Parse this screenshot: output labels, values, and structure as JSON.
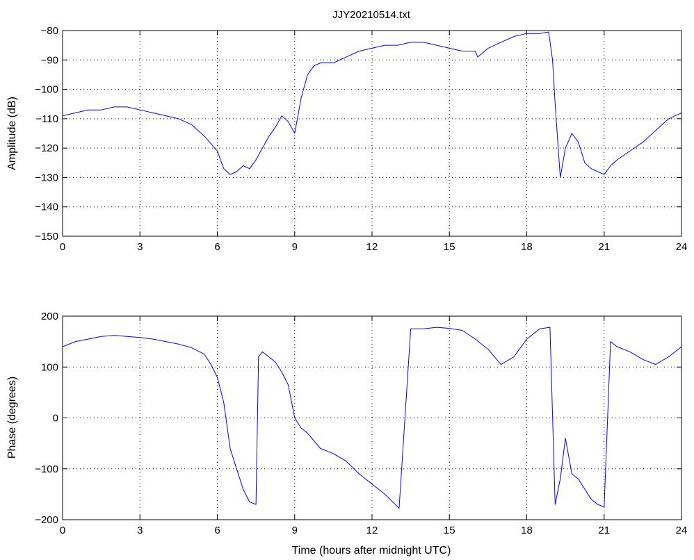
{
  "colors": {
    "series": "#0000ff",
    "axes": "#000000",
    "background": "#ffffff"
  },
  "chart_data": [
    {
      "type": "line",
      "title": "JJY20210514.txt",
      "xlabel": "",
      "ylabel": "Amplitude (dB)",
      "xlim": [
        0,
        24
      ],
      "ylim": [
        -150,
        -80
      ],
      "xticks": [
        0,
        3,
        6,
        9,
        12,
        15,
        18,
        21,
        24
      ],
      "yticks": [
        -150,
        -140,
        -130,
        -120,
        -110,
        -100,
        -90,
        -80
      ],
      "xtick_labels": [
        "0",
        "3",
        "6",
        "9",
        "12",
        "15",
        "18",
        "21",
        "24"
      ],
      "ytick_labels": [
        "−150",
        "−140",
        "−130",
        "−120",
        "−110",
        "−100",
        "−90",
        "−80"
      ],
      "grid": true,
      "series": [
        {
          "color": "#0000ff",
          "x": [
            0,
            0.5,
            1,
            1.5,
            2,
            2.5,
            3,
            3.5,
            4,
            4.5,
            5,
            5.5,
            6,
            6.25,
            6.5,
            6.75,
            7,
            7.25,
            7.5,
            7.75,
            8,
            8.25,
            8.5,
            8.75,
            9,
            9.25,
            9.5,
            9.75,
            10,
            10.5,
            11,
            11.5,
            12,
            12.5,
            13,
            13.5,
            14,
            14.5,
            15,
            15.5,
            16,
            16.1,
            16.5,
            17,
            17.5,
            18,
            18.5,
            18.85,
            19,
            19.1,
            19.3,
            19.5,
            19.75,
            20,
            20.25,
            20.5,
            20.75,
            21,
            21.25,
            21.5,
            22,
            22.5,
            23,
            23.5,
            24
          ],
          "y": [
            -109,
            -108,
            -107,
            -107,
            -106,
            -106,
            -107,
            -108,
            -109,
            -110,
            -112,
            -116,
            -121,
            -127,
            -129,
            -128,
            -126,
            -127,
            -124,
            -120,
            -116,
            -113,
            -109,
            -111,
            -115,
            -103,
            -95,
            -92,
            -91,
            -91,
            -89,
            -87,
            -86,
            -85,
            -85,
            -84,
            -84,
            -85,
            -86,
            -87,
            -87,
            -89,
            -86,
            -84,
            -82,
            -81,
            -81,
            -80.5,
            -90,
            -105,
            -130,
            -120,
            -115,
            -118,
            -125,
            -127,
            -128,
            -129,
            -126,
            -124,
            -121,
            -118,
            -114,
            -110,
            -108
          ]
        }
      ]
    },
    {
      "type": "line",
      "title": "",
      "xlabel": "Time (hours after midnight UTC)",
      "ylabel": "Phase (degrees)",
      "xlim": [
        0,
        24
      ],
      "ylim": [
        -200,
        200
      ],
      "xticks": [
        0,
        3,
        6,
        9,
        12,
        15,
        18,
        21,
        24
      ],
      "yticks": [
        -200,
        -100,
        0,
        100,
        200
      ],
      "xtick_labels": [
        "0",
        "3",
        "6",
        "9",
        "12",
        "15",
        "18",
        "21",
        "24"
      ],
      "ytick_labels": [
        "−200",
        "−100",
        "0",
        "100",
        "200"
      ],
      "grid": true,
      "series": [
        {
          "color": "#0000ff",
          "x": [
            0,
            0.5,
            1,
            1.5,
            2,
            2.5,
            3,
            3.5,
            4,
            4.5,
            5,
            5.5,
            5.75,
            6,
            6.25,
            6.5,
            6.75,
            7,
            7.25,
            7.5,
            7.6,
            7.75,
            8,
            8.25,
            8.5,
            8.75,
            9,
            9.25,
            9.5,
            10,
            10.5,
            11,
            11.5,
            12,
            12.5,
            13,
            13.05,
            13.5,
            14,
            14.5,
            15,
            15.5,
            16,
            16.5,
            17,
            17.5,
            18,
            18.5,
            18.9,
            19.1,
            19.3,
            19.5,
            19.75,
            20,
            20.25,
            20.5,
            20.75,
            21,
            21.25,
            21.5,
            22,
            22.5,
            23,
            23.5,
            24
          ],
          "y": [
            140,
            150,
            155,
            160,
            162,
            160,
            158,
            155,
            150,
            145,
            138,
            125,
            105,
            80,
            30,
            -60,
            -100,
            -140,
            -165,
            -170,
            120,
            130,
            120,
            110,
            90,
            65,
            0,
            -20,
            -30,
            -60,
            -70,
            -85,
            -110,
            -130,
            -150,
            -175,
            -178,
            175,
            175,
            178,
            176,
            172,
            155,
            135,
            105,
            120,
            155,
            175,
            178,
            -170,
            -120,
            -40,
            -110,
            -120,
            -140,
            -160,
            -170,
            -175,
            150,
            140,
            130,
            115,
            105,
            120,
            140
          ]
        }
      ]
    }
  ]
}
